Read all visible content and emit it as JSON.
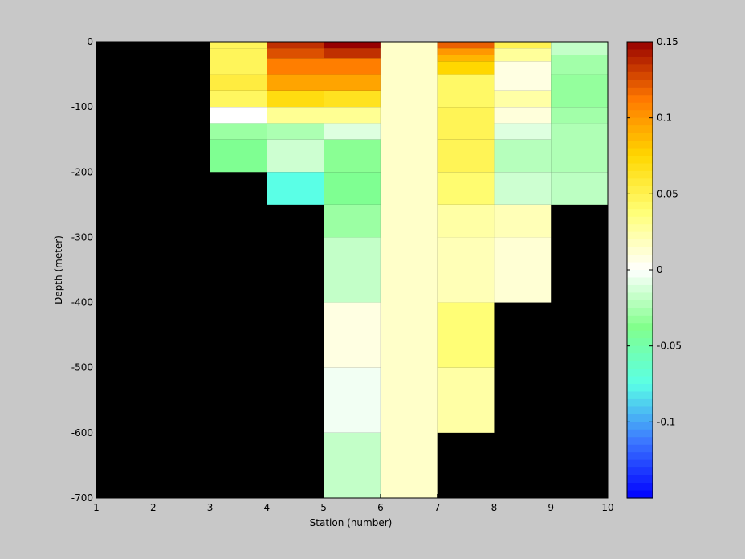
{
  "chart_data": {
    "type": "heatmap",
    "title": "",
    "xlabel": "Station (number)",
    "ylabel": "Depth (meter)",
    "xlim": [
      1,
      10
    ],
    "ylim": [
      -700,
      0
    ],
    "x_ticks": [
      "1",
      "2",
      "3",
      "4",
      "5",
      "6",
      "7",
      "8",
      "9",
      "10"
    ],
    "y_ticks": [
      "0",
      "-100",
      "-200",
      "-300",
      "-400",
      "-500",
      "-600",
      "-700"
    ],
    "colorbar": {
      "range": [
        -0.15,
        0.15
      ],
      "colormap": "jet-diverging (blue-cyan-green-white-yellow-orange-red)",
      "ticks": [
        "0.15",
        "0.1",
        "0.05",
        "0",
        "-0.05",
        "-0.1"
      ]
    },
    "no_data_color": "#000000",
    "cells": [
      {
        "x": [
          3,
          4
        ],
        "depth": [
          0,
          -10
        ],
        "value": 0.047
      },
      {
        "x": [
          3,
          4
        ],
        "depth": [
          -10,
          -50
        ],
        "value": 0.047
      },
      {
        "x": [
          3,
          4
        ],
        "depth": [
          -50,
          -75
        ],
        "value": 0.055
      },
      {
        "x": [
          3,
          4
        ],
        "depth": [
          -75,
          -100
        ],
        "value": 0.045
      },
      {
        "x": [
          3,
          4
        ],
        "depth": [
          -100,
          -125
        ],
        "value": 0.0
      },
      {
        "x": [
          3,
          4
        ],
        "depth": [
          -125,
          -150
        ],
        "value": -0.03
      },
      {
        "x": [
          3,
          4
        ],
        "depth": [
          -150,
          -200
        ],
        "value": -0.04
      },
      {
        "x": [
          4,
          5
        ],
        "depth": [
          0,
          -10
        ],
        "value": 0.135
      },
      {
        "x": [
          4,
          5
        ],
        "depth": [
          -10,
          -25
        ],
        "value": 0.125
      },
      {
        "x": [
          4,
          5
        ],
        "depth": [
          -25,
          -50
        ],
        "value": 0.11
      },
      {
        "x": [
          4,
          5
        ],
        "depth": [
          -50,
          -75
        ],
        "value": 0.095
      },
      {
        "x": [
          4,
          5
        ],
        "depth": [
          -75,
          -100
        ],
        "value": 0.07
      },
      {
        "x": [
          4,
          5
        ],
        "depth": [
          -100,
          -125
        ],
        "value": 0.03
      },
      {
        "x": [
          4,
          5
        ],
        "depth": [
          -125,
          -150
        ],
        "value": -0.025
      },
      {
        "x": [
          4,
          5
        ],
        "depth": [
          -150,
          -200
        ],
        "value": -0.015
      },
      {
        "x": [
          4,
          5
        ],
        "depth": [
          -200,
          -250
        ],
        "value": -0.075
      },
      {
        "x": [
          5,
          6
        ],
        "depth": [
          0,
          -10
        ],
        "value": 0.15
      },
      {
        "x": [
          5,
          6
        ],
        "depth": [
          -10,
          -25
        ],
        "value": 0.135
      },
      {
        "x": [
          5,
          6
        ],
        "depth": [
          -25,
          -50
        ],
        "value": 0.11
      },
      {
        "x": [
          5,
          6
        ],
        "depth": [
          -50,
          -75
        ],
        "value": 0.095
      },
      {
        "x": [
          5,
          6
        ],
        "depth": [
          -75,
          -100
        ],
        "value": 0.065
      },
      {
        "x": [
          5,
          6
        ],
        "depth": [
          -100,
          -125
        ],
        "value": 0.03
      },
      {
        "x": [
          5,
          6
        ],
        "depth": [
          -125,
          -150
        ],
        "value": -0.01
      },
      {
        "x": [
          5,
          6
        ],
        "depth": [
          -150,
          -200
        ],
        "value": -0.035
      },
      {
        "x": [
          5,
          6
        ],
        "depth": [
          -200,
          -250
        ],
        "value": -0.04
      },
      {
        "x": [
          5,
          6
        ],
        "depth": [
          -250,
          -300
        ],
        "value": -0.03
      },
      {
        "x": [
          5,
          6
        ],
        "depth": [
          -300,
          -400
        ],
        "value": -0.018
      },
      {
        "x": [
          5,
          6
        ],
        "depth": [
          -400,
          -500
        ],
        "value": 0.008
      },
      {
        "x": [
          5,
          6
        ],
        "depth": [
          -500,
          -600
        ],
        "value": -0.004
      },
      {
        "x": [
          5,
          6
        ],
        "depth": [
          -600,
          -700
        ],
        "value": -0.018
      },
      {
        "x": [
          6,
          7
        ],
        "depth": [
          0,
          -700
        ],
        "value": 0.015
      },
      {
        "x": [
          7,
          8
        ],
        "depth": [
          0,
          -10
        ],
        "value": 0.12
      },
      {
        "x": [
          7,
          8
        ],
        "depth": [
          -10,
          -20
        ],
        "value": 0.1
      },
      {
        "x": [
          7,
          8
        ],
        "depth": [
          -20,
          -30
        ],
        "value": 0.088
      },
      {
        "x": [
          7,
          8
        ],
        "depth": [
          -30,
          -50
        ],
        "value": 0.075
      },
      {
        "x": [
          7,
          8
        ],
        "depth": [
          -50,
          -100
        ],
        "value": 0.043
      },
      {
        "x": [
          7,
          8
        ],
        "depth": [
          -100,
          -150
        ],
        "value": 0.048
      },
      {
        "x": [
          7,
          8
        ],
        "depth": [
          -150,
          -200
        ],
        "value": 0.048
      },
      {
        "x": [
          7,
          8
        ],
        "depth": [
          -200,
          -250
        ],
        "value": 0.04
      },
      {
        "x": [
          7,
          8
        ],
        "depth": [
          -250,
          -300
        ],
        "value": 0.025
      },
      {
        "x": [
          7,
          8
        ],
        "depth": [
          -300,
          -400
        ],
        "value": 0.02
      },
      {
        "x": [
          7,
          8
        ],
        "depth": [
          -400,
          -500
        ],
        "value": 0.038
      },
      {
        "x": [
          7,
          8
        ],
        "depth": [
          -500,
          -600
        ],
        "value": 0.025
      },
      {
        "x": [
          8,
          9
        ],
        "depth": [
          0,
          -10
        ],
        "value": 0.05
      },
      {
        "x": [
          8,
          9
        ],
        "depth": [
          -10,
          -30
        ],
        "value": 0.028
      },
      {
        "x": [
          8,
          9
        ],
        "depth": [
          -30,
          -75
        ],
        "value": 0.008
      },
      {
        "x": [
          8,
          9
        ],
        "depth": [
          -75,
          -100
        ],
        "value": 0.025
      },
      {
        "x": [
          8,
          9
        ],
        "depth": [
          -100,
          -125
        ],
        "value": 0.01
      },
      {
        "x": [
          8,
          9
        ],
        "depth": [
          -125,
          -150
        ],
        "value": -0.01
      },
      {
        "x": [
          8,
          9
        ],
        "depth": [
          -150,
          -200
        ],
        "value": -0.022
      },
      {
        "x": [
          8,
          9
        ],
        "depth": [
          -200,
          -250
        ],
        "value": -0.015
      },
      {
        "x": [
          8,
          9
        ],
        "depth": [
          -250,
          -300
        ],
        "value": 0.02
      },
      {
        "x": [
          8,
          9
        ],
        "depth": [
          -300,
          -400
        ],
        "value": 0.012
      },
      {
        "x": [
          9,
          10
        ],
        "depth": [
          0,
          -20
        ],
        "value": -0.018
      },
      {
        "x": [
          9,
          10
        ],
        "depth": [
          -20,
          -50
        ],
        "value": -0.028
      },
      {
        "x": [
          9,
          10
        ],
        "depth": [
          -50,
          -100
        ],
        "value": -0.032
      },
      {
        "x": [
          9,
          10
        ],
        "depth": [
          -100,
          -125
        ],
        "value": -0.028
      },
      {
        "x": [
          9,
          10
        ],
        "depth": [
          -125,
          -200
        ],
        "value": -0.024
      },
      {
        "x": [
          9,
          10
        ],
        "depth": [
          -200,
          -250
        ],
        "value": -0.02
      }
    ]
  }
}
